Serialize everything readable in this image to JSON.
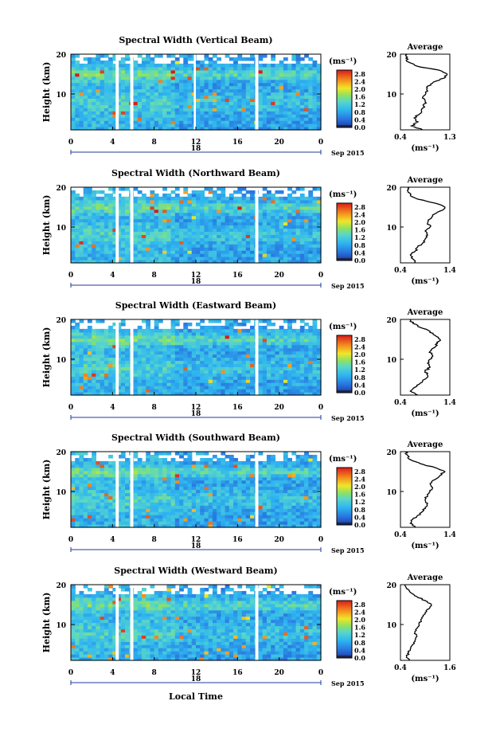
{
  "figure": {
    "xlabel": "Local Time",
    "ylabel": "Height (km)",
    "date_label": "Sep 2015",
    "day_label": "18",
    "colorbar_unit": "(ms⁻¹)",
    "colorbar_ticks": [
      "0.0",
      "0.4",
      "0.8",
      "1.2",
      "1.6",
      "2.0",
      "2.4",
      "2.8"
    ],
    "x_ticks": [
      "0",
      "4",
      "8",
      "12",
      "16",
      "20",
      "0"
    ],
    "y_ticks": [
      "10",
      "20"
    ],
    "profile_title": "Average",
    "profile_xlabel": "(ms⁻¹)",
    "colors": {
      "low": "#1e3a9c",
      "mid": "#2fb6f0",
      "high": "#d7191c",
      "gap": "#ffffff"
    }
  },
  "chart_data": [
    {
      "type": "heatmap",
      "title": "Spectral Width (Vertical Beam)",
      "xlim": [
        0,
        24
      ],
      "ylim": [
        1,
        20
      ],
      "zlim": [
        0,
        3.0
      ],
      "gaps": [
        [
          4.3,
          4.6
        ],
        [
          5.7,
          6.0
        ],
        [
          11.8,
          12.0
        ],
        [
          17.7,
          18.0
        ]
      ],
      "profile": {
        "xlim": [
          0.4,
          1.3
        ],
        "xticks": [
          "0.4",
          "1.3"
        ],
        "heights": [
          1,
          2,
          3,
          4,
          5,
          6,
          7,
          8,
          9,
          10,
          11,
          12,
          13,
          14,
          15,
          16,
          17,
          18,
          19,
          20
        ],
        "values": [
          0.8,
          0.6,
          0.72,
          0.65,
          0.75,
          0.78,
          0.82,
          0.85,
          0.8,
          0.86,
          0.88,
          0.9,
          1.0,
          1.2,
          1.25,
          1.1,
          0.7,
          0.55,
          0.5,
          0.52
        ]
      }
    },
    {
      "type": "heatmap",
      "title": "Spectral Width (Northward Beam)",
      "xlim": [
        0,
        24
      ],
      "ylim": [
        1,
        20
      ],
      "zlim": [
        0,
        3.0
      ],
      "gaps": [
        [
          4.3,
          4.6
        ],
        [
          5.7,
          6.0
        ],
        [
          17.7,
          18.0
        ]
      ],
      "profile": {
        "xlim": [
          0.4,
          1.4
        ],
        "xticks": [
          "0.4",
          "1.4"
        ],
        "heights": [
          1,
          2,
          3,
          4,
          5,
          6,
          7,
          8,
          9,
          10,
          11,
          12,
          13,
          14,
          15,
          16,
          17,
          18,
          19,
          20
        ],
        "values": [
          0.7,
          0.65,
          0.6,
          0.7,
          0.75,
          0.85,
          0.9,
          0.95,
          0.9,
          1.0,
          0.95,
          1.0,
          1.05,
          1.2,
          1.3,
          1.1,
          0.75,
          0.6,
          0.55,
          0.58
        ]
      }
    },
    {
      "type": "heatmap",
      "title": "Spectral Width (Eastward Beam)",
      "xlim": [
        0,
        24
      ],
      "ylim": [
        1,
        20
      ],
      "zlim": [
        0,
        3.0
      ],
      "gaps": [
        [
          4.3,
          4.6
        ],
        [
          5.7,
          6.0
        ],
        [
          17.7,
          18.0
        ]
      ],
      "profile": {
        "xlim": [
          0.4,
          1.4
        ],
        "xticks": [
          "0.4",
          "1.4"
        ],
        "heights": [
          1,
          2,
          3,
          4,
          5,
          6,
          7,
          8,
          9,
          10,
          11,
          12,
          13,
          14,
          15,
          16,
          17,
          18,
          19,
          20
        ],
        "values": [
          0.75,
          0.6,
          0.7,
          0.8,
          0.9,
          0.95,
          0.9,
          1.0,
          0.95,
          1.0,
          1.05,
          1.0,
          1.1,
          1.15,
          1.2,
          1.1,
          1.0,
          0.8,
          0.65,
          0.6
        ]
      }
    },
    {
      "type": "heatmap",
      "title": "Spectral Width (Southward Beam)",
      "xlim": [
        0,
        24
      ],
      "ylim": [
        1,
        20
      ],
      "zlim": [
        0,
        3.0
      ],
      "gaps": [
        [
          4.3,
          4.6
        ],
        [
          5.7,
          6.0
        ],
        [
          17.7,
          18.0
        ]
      ],
      "profile": {
        "xlim": [
          0.4,
          1.4
        ],
        "xticks": [
          "0.4",
          "1.4"
        ],
        "heights": [
          1,
          2,
          3,
          4,
          5,
          6,
          7,
          8,
          9,
          10,
          11,
          12,
          13,
          14,
          15,
          16,
          17,
          18,
          19,
          20
        ],
        "values": [
          0.7,
          0.6,
          0.65,
          0.75,
          0.85,
          0.9,
          0.95,
          0.9,
          0.95,
          1.0,
          1.05,
          1.0,
          1.1,
          1.2,
          1.3,
          1.1,
          0.8,
          0.6,
          0.55,
          0.5
        ]
      }
    },
    {
      "type": "heatmap",
      "title": "Spectral Width (Westward Beam)",
      "xlim": [
        0,
        24
      ],
      "ylim": [
        1,
        20
      ],
      "zlim": [
        0,
        3.0
      ],
      "gaps": [
        [
          4.3,
          4.6
        ],
        [
          5.7,
          6.0
        ],
        [
          17.7,
          18.0
        ]
      ],
      "profile": {
        "xlim": [
          0.4,
          1.6
        ],
        "xticks": [
          "0.4",
          "1.6"
        ],
        "heights": [
          1,
          2,
          3,
          4,
          5,
          6,
          7,
          8,
          9,
          10,
          11,
          12,
          13,
          14,
          15,
          16,
          17,
          18,
          19,
          20
        ],
        "values": [
          0.6,
          0.55,
          0.6,
          0.65,
          0.7,
          0.75,
          0.8,
          0.75,
          0.8,
          0.85,
          0.9,
          0.95,
          1.0,
          1.1,
          1.15,
          1.0,
          0.8,
          0.65,
          0.55,
          0.5
        ]
      }
    }
  ]
}
